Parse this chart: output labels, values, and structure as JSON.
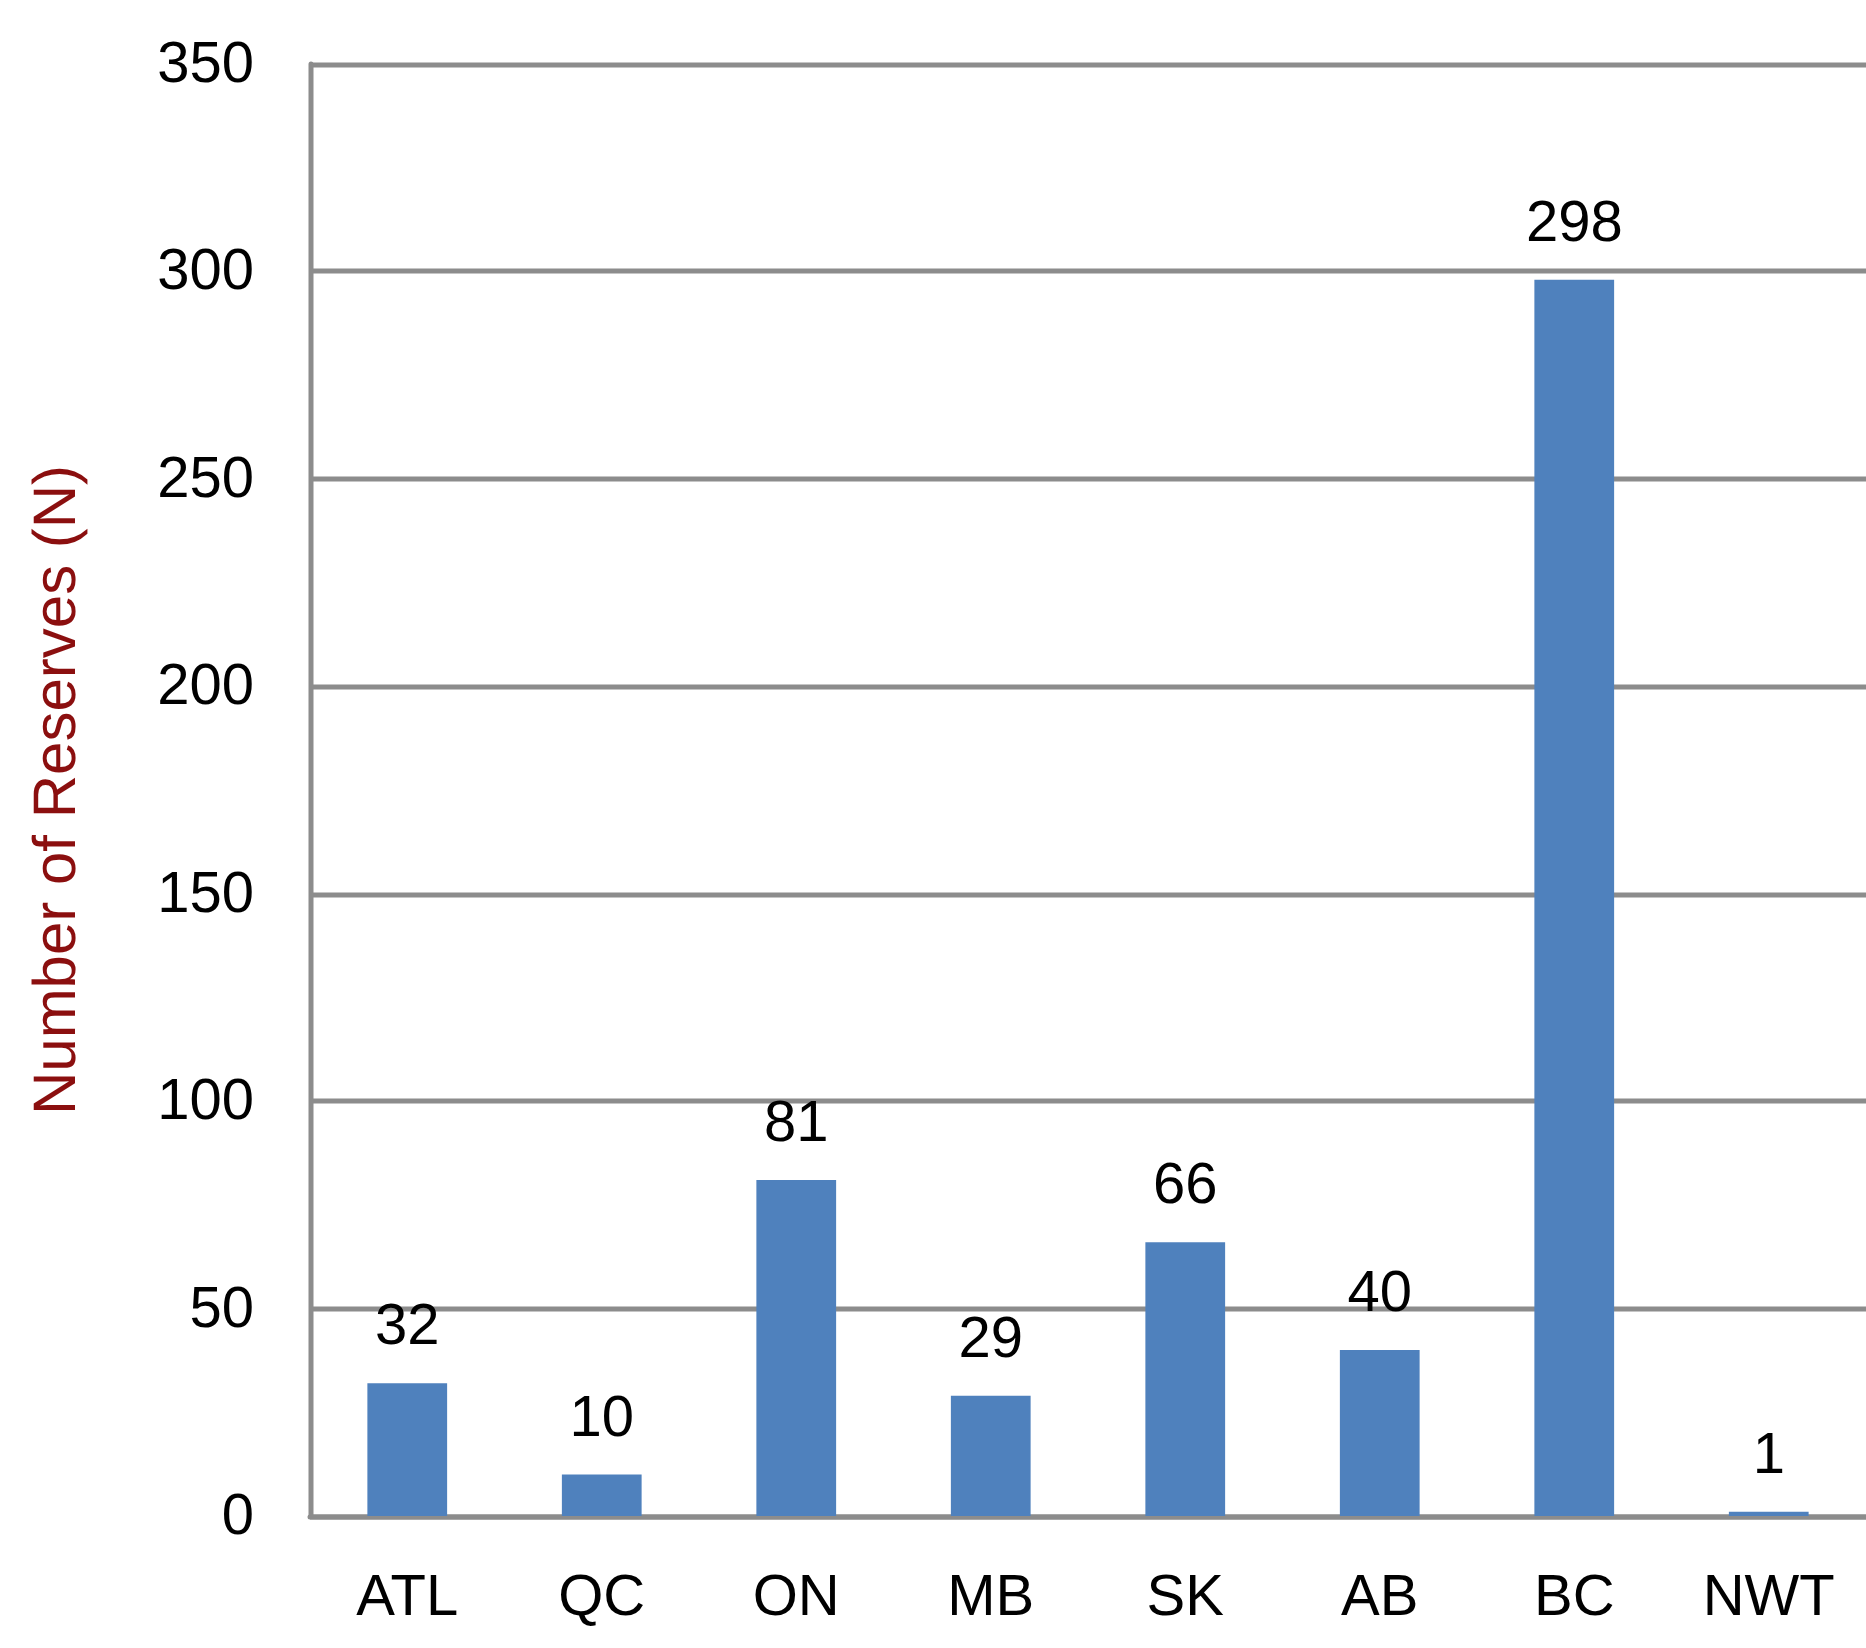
{
  "chart_data": {
    "type": "bar",
    "ylabel": "Number of Reserves (N)",
    "categories": [
      "ATL",
      "QC",
      "ON",
      "MB",
      "SK",
      "AB",
      "BC",
      "NWT"
    ],
    "values": [
      32,
      10,
      81,
      29,
      66,
      40,
      298,
      1
    ],
    "color": "#4f81bd",
    "ylim": [
      0,
      350
    ],
    "yticks": [
      0,
      50,
      100,
      150,
      200,
      250,
      300,
      350
    ],
    "grid": "y",
    "data_labels": true
  }
}
